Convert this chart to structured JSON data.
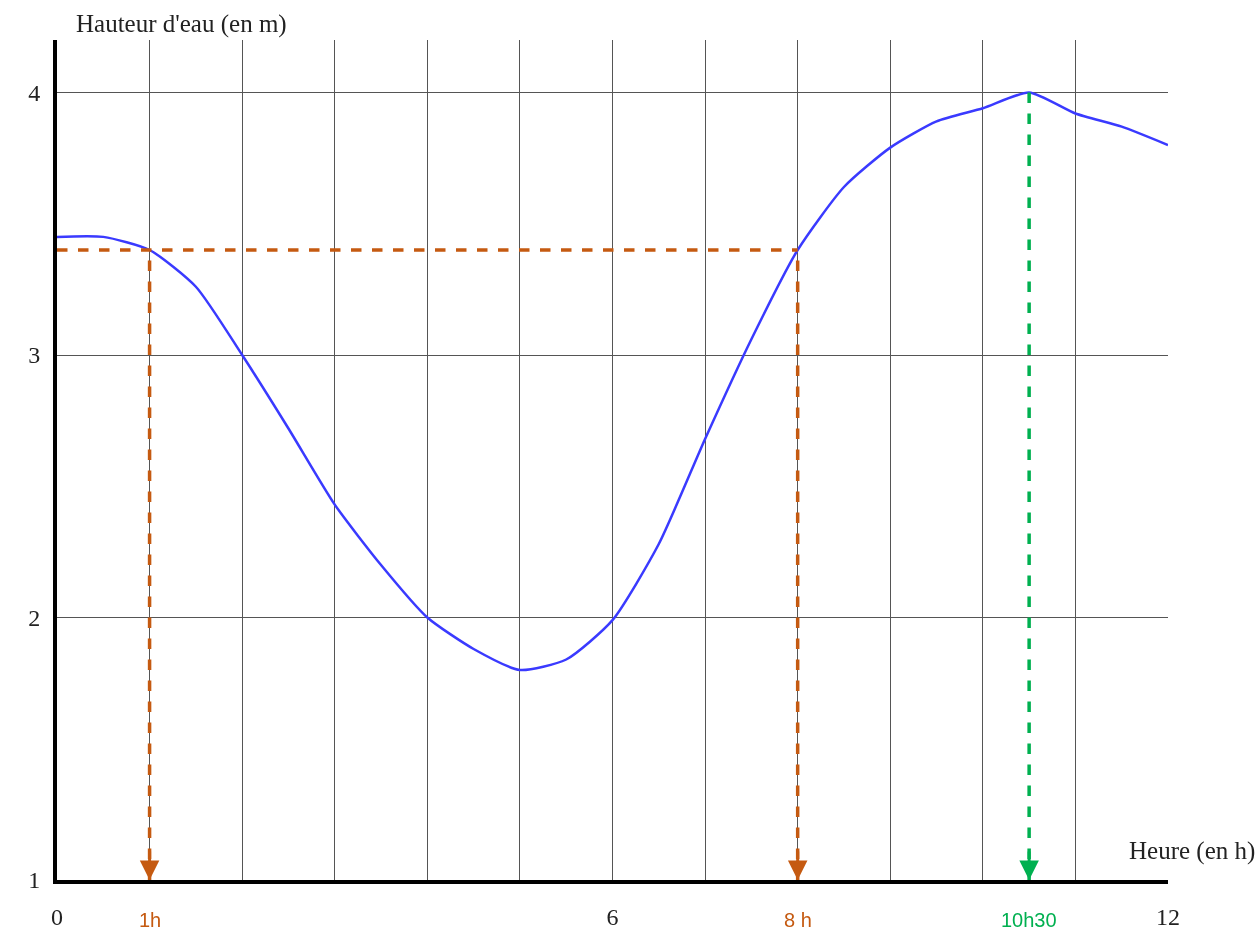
{
  "chart_data": {
    "type": "line",
    "xlabel": "Heure (en h)",
    "ylabel": "Hauteur d'eau (en m)",
    "x": [
      0,
      0.5,
      1,
      1.5,
      2,
      2.5,
      3,
      3.5,
      4,
      4.5,
      5,
      5.5,
      6,
      6.5,
      7,
      7.5,
      8,
      8.5,
      9,
      9.5,
      10,
      10.5,
      11,
      11.5,
      12
    ],
    "series": [
      {
        "color": "#3a3aff",
        "values": [
          3.45,
          3.45,
          3.4,
          3.26,
          3.0,
          2.72,
          2.43,
          2.2,
          2.0,
          1.88,
          1.8,
          1.84,
          1.99,
          2.28,
          2.68,
          3.06,
          3.4,
          3.64,
          3.79,
          3.89,
          3.94,
          4.0,
          3.92,
          3.87,
          3.8
        ]
      }
    ],
    "xlim": [
      0,
      12
    ],
    "ylim": [
      1,
      4.2
    ],
    "xticks": [
      0,
      {
        "value": 1,
        "label": null
      },
      {
        "value": 2,
        "label": null
      },
      {
        "value": 3,
        "label": null
      },
      {
        "value": 4,
        "label": null
      },
      {
        "value": 5,
        "label": null
      },
      6,
      {
        "value": 7,
        "label": null
      },
      {
        "value": 8,
        "label": null
      },
      {
        "value": 9,
        "label": null
      },
      {
        "value": 10,
        "label": null
      },
      {
        "value": 11,
        "label": null
      },
      12
    ],
    "yticks": [
      1,
      2,
      3,
      4
    ],
    "grid": true,
    "marker": "none",
    "line_style": "solid",
    "ref_lines": [
      {
        "axis": "y",
        "value": 3.4,
        "label": null,
        "color": "#c55a11",
        "line_style": "dashed"
      },
      {
        "axis": "x",
        "value": 1,
        "label": "1h",
        "color": "#c55a11",
        "line_style": "dashed"
      },
      {
        "axis": "x",
        "value": 8,
        "label": "8 h",
        "color": "#c55a11",
        "line_style": "dashed"
      },
      {
        "axis": "x",
        "value": 10.5,
        "label": "10h30",
        "color": "#00b050",
        "line_style": "dashed"
      }
    ]
  }
}
